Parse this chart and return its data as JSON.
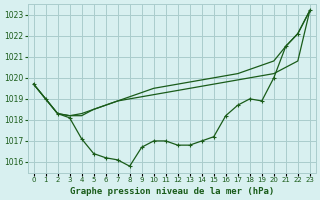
{
  "title": "Graphe pression niveau de la mer (hPa)",
  "bg_color": "#d8f0f0",
  "grid_color": "#aacccc",
  "line_color": "#1a5c1a",
  "marker_color": "#1a5c1a",
  "x_labels": [
    "0",
    "1",
    "2",
    "3",
    "4",
    "5",
    "6",
    "7",
    "8",
    "9",
    "10",
    "11",
    "12",
    "13",
    "14",
    "15",
    "16",
    "17",
    "18",
    "19",
    "20",
    "21",
    "22",
    "23"
  ],
  "ylim": [
    1015.5,
    1023.5
  ],
  "yticks": [
    1016,
    1017,
    1018,
    1019,
    1020,
    1021,
    1022,
    1023
  ],
  "series": [
    [
      1019.7,
      1019.0,
      1018.3,
      1018.1,
      1017.1,
      1016.4,
      1016.2,
      1016.1,
      1015.8,
      1016.7,
      1017.0,
      1017.0,
      1016.8,
      1016.8,
      1017.0,
      1017.2,
      1018.2,
      1018.7,
      1019.0,
      1018.9,
      1020.0,
      1021.5,
      1022.1,
      1023.2
    ],
    [
      1019.7,
      1019.0,
      1018.3,
      1018.2,
      1018.2,
      1018.5,
      1018.7,
      1018.9,
      1019.0,
      1019.1,
      1019.2,
      1019.3,
      1019.4,
      1019.5,
      1019.6,
      1019.7,
      1019.8,
      1019.9,
      1020.0,
      1020.1,
      1020.2,
      1020.5,
      1020.8,
      1023.2
    ],
    [
      1019.7,
      1019.0,
      1018.3,
      1018.2,
      1018.3,
      1018.5,
      1018.7,
      1018.9,
      1019.1,
      1019.3,
      1019.5,
      1019.6,
      1019.7,
      1019.8,
      1019.9,
      1020.0,
      1020.1,
      1020.2,
      1020.4,
      1020.6,
      1020.8,
      1021.5,
      1022.1,
      1023.2
    ]
  ]
}
